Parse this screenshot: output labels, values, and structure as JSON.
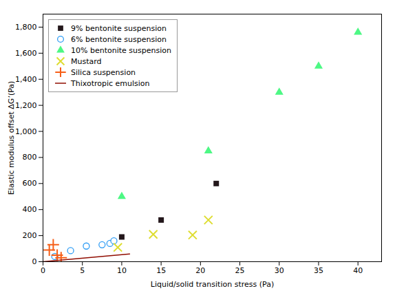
{
  "chart_data": {
    "type": "scatter",
    "xlabel": "Liquid/solid transition stress (Pa)",
    "ylabel": "Elastic modulus offset ΔG’(Pa)",
    "xlim": [
      0,
      43
    ],
    "ylim": [
      0,
      1900
    ],
    "xticks": [
      0,
      5,
      10,
      15,
      20,
      25,
      30,
      35,
      40
    ],
    "yticks": [
      0,
      200,
      400,
      600,
      800,
      1000,
      1200,
      1400,
      1600,
      1800
    ],
    "grid": false,
    "legend": "upper left",
    "series": [
      {
        "name": "9% bentonite suspension",
        "type": "scatter",
        "marker": "filled_square",
        "x": [
          10,
          15,
          22
        ],
        "values": [
          190,
          320,
          600
        ]
      },
      {
        "name": "6% bentonite suspension",
        "type": "scatter",
        "marker": "open_circle",
        "x": [
          1.5,
          3.5,
          5.5,
          7.5,
          8.5,
          9.0
        ],
        "values": [
          40,
          85,
          120,
          130,
          140,
          160
        ]
      },
      {
        "name": "10% bentonite suspension",
        "type": "scatter",
        "marker": "filled_triangle",
        "x": [
          10,
          21,
          30,
          35,
          40
        ],
        "values": [
          500,
          850,
          1300,
          1500,
          1760
        ]
      },
      {
        "name": "Mustard",
        "type": "scatter",
        "marker": "x",
        "x": [
          9.5,
          14,
          19,
          21
        ],
        "values": [
          110,
          210,
          205,
          320
        ]
      },
      {
        "name": "Silica suspension",
        "type": "scatter",
        "marker": "plus",
        "x": [
          0.8,
          1.3,
          1.8,
          2.3
        ],
        "values": [
          90,
          130,
          50,
          30
        ]
      },
      {
        "name": "Thixotropic emulsion",
        "type": "line",
        "line_style": "solid",
        "x": [
          0,
          11
        ],
        "values": [
          0,
          60
        ]
      }
    ]
  }
}
